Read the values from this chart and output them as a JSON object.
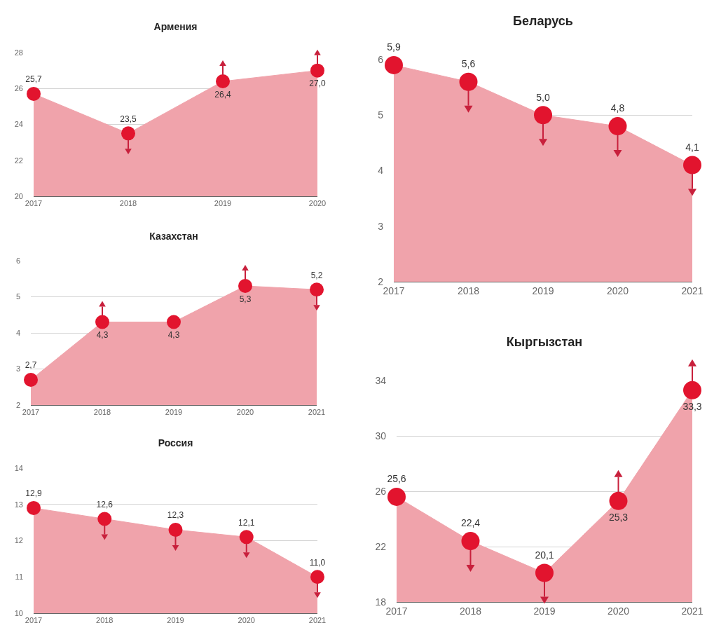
{
  "chart_data": [
    {
      "type": "area",
      "title": "Армения",
      "categories": [
        "2017",
        "2018",
        "2019",
        "2020"
      ],
      "values": [
        25.7,
        23.5,
        26.4,
        27.0
      ],
      "value_labels": [
        "25,7",
        "23,5",
        "26,4",
        "27,0"
      ],
      "color": "#f0a3ab",
      "ylim": [
        20,
        28
      ],
      "yticks": [
        20,
        22,
        24,
        26,
        28
      ],
      "grid": "y",
      "marker": "circle"
    },
    {
      "type": "area",
      "title": "Беларусь",
      "categories": [
        "2017",
        "2018",
        "2019",
        "2020",
        "2021"
      ],
      "values": [
        5.9,
        5.6,
        5.0,
        4.8,
        4.1
      ],
      "value_labels": [
        "5,9",
        "5,6",
        "5,0",
        "4,8",
        "4,1"
      ],
      "color": "#f0a3ab",
      "ylim": [
        2,
        6
      ],
      "yticks": [
        2,
        3,
        4,
        5,
        6
      ],
      "grid": "y",
      "marker": "circle"
    },
    {
      "type": "area",
      "title": "Казахстан",
      "categories": [
        "2017",
        "2018",
        "2019",
        "2020",
        "2021"
      ],
      "values": [
        2.7,
        4.3,
        4.3,
        5.3,
        5.2
      ],
      "value_labels": [
        "2,7",
        "4,3",
        "4,3",
        "5,3",
        "5,2"
      ],
      "color": "#f0a3ab",
      "ylim": [
        2,
        6
      ],
      "yticks": [
        2,
        3,
        4,
        5,
        6
      ],
      "grid": "y",
      "marker": "circle"
    },
    {
      "type": "area",
      "title": "Кыргызстан",
      "categories": [
        "2017",
        "2018",
        "2019",
        "2020",
        "2021"
      ],
      "values": [
        25.6,
        22.4,
        20.1,
        25.3,
        33.3
      ],
      "value_labels": [
        "25,6",
        "22,4",
        "20,1",
        "25,3",
        "33,3"
      ],
      "color": "#f0a3ab",
      "ylim": [
        18,
        34
      ],
      "yticks": [
        18,
        22,
        26,
        30,
        34
      ],
      "grid": "y",
      "marker": "circle"
    },
    {
      "type": "area",
      "title": "Россия",
      "categories": [
        "2017",
        "2018",
        "2019",
        "2020",
        "2021"
      ],
      "values": [
        12.9,
        12.6,
        12.3,
        12.1,
        11.0
      ],
      "value_labels": [
        "12,9",
        "12,6",
        "12,3",
        "12,1",
        "11,0"
      ],
      "color": "#f0a3ab",
      "ylim": [
        10,
        14
      ],
      "yticks": [
        10,
        11,
        12,
        13,
        14
      ],
      "grid": "y",
      "marker": "circle"
    }
  ]
}
